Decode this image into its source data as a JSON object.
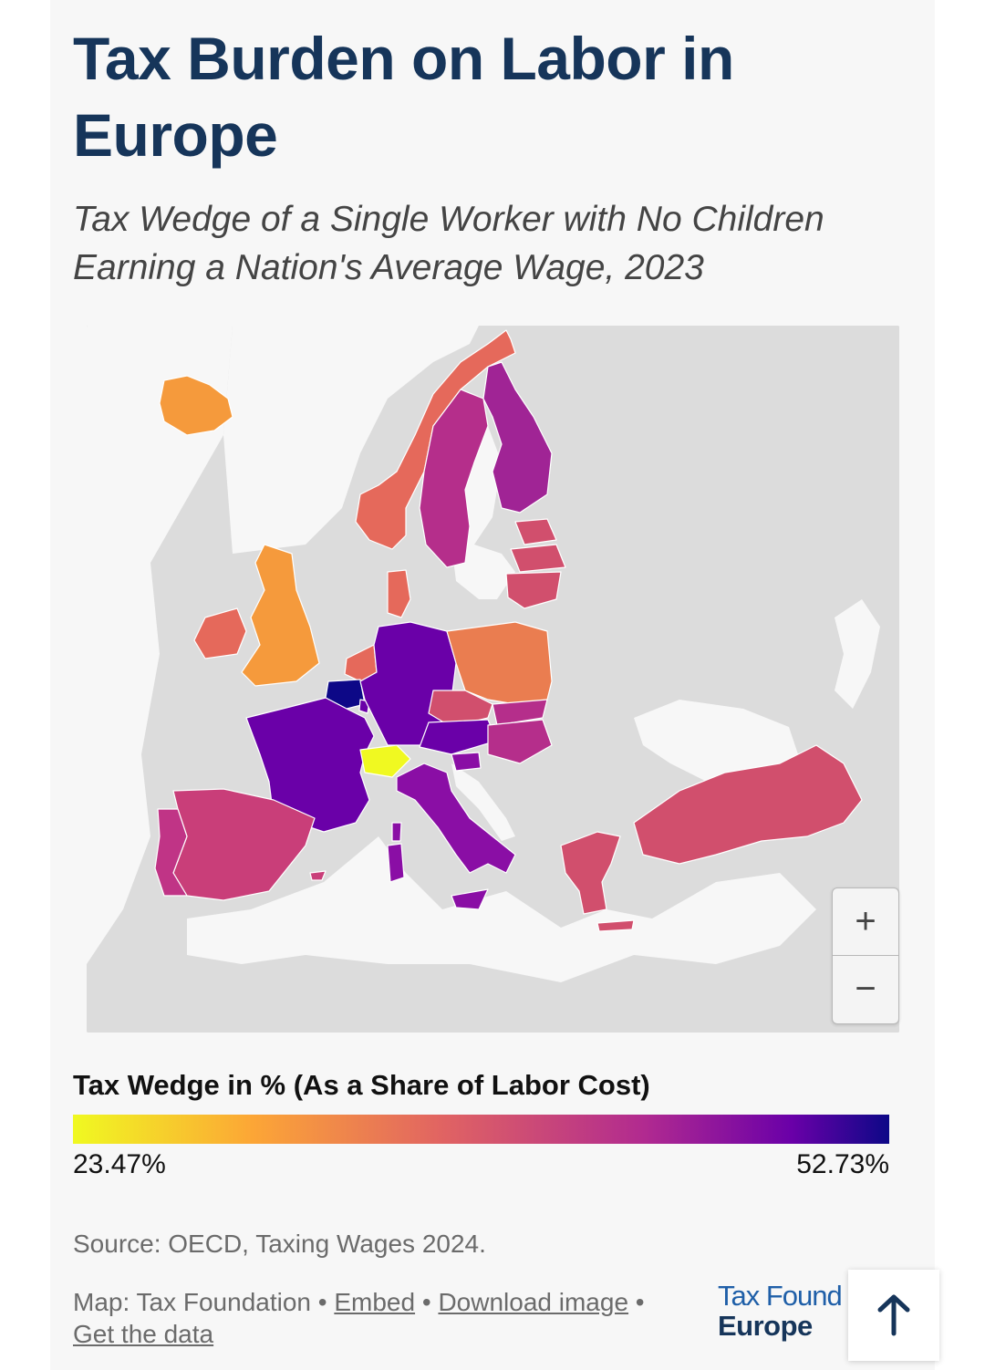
{
  "header": {
    "title": "Tax Burden on Labor in Europe",
    "subtitle": "Tax Wedge of a Single Worker with No Children Earning a Nation's Average Wage, 2023"
  },
  "map": {
    "zoom_in_label": "+",
    "zoom_out_label": "−",
    "colors": {
      "background": "#dcdcdc",
      "border": "#ffffff",
      "yellow": "#f0f921",
      "orange": "#f59a3c",
      "coral": "#e5695b",
      "rose": "#d14f6d",
      "magenta": "#b52e8b",
      "purple": "#8a0ea5",
      "violet": "#6a00a8",
      "navy": "#0d0887"
    }
  },
  "legend": {
    "title": "Tax Wedge in % (As a Share of Labor Cost)",
    "min_label": "23.47%",
    "max_label": "52.73%",
    "gradient": [
      "#f0f921",
      "#fca636",
      "#e16462",
      "#b12a90",
      "#6a00a8",
      "#0d0887"
    ]
  },
  "footer": {
    "source": "Source: OECD, Taxing Wages 2024.",
    "map_credit": "Map: Tax Foundation",
    "separator": " • ",
    "embed_link": "Embed",
    "download_link": "Download image",
    "data_link": "Get the data",
    "logo_line1": "Tax Found",
    "logo_line2": "Europe",
    "back_to_top_icon": "arrow-up-icon"
  }
}
